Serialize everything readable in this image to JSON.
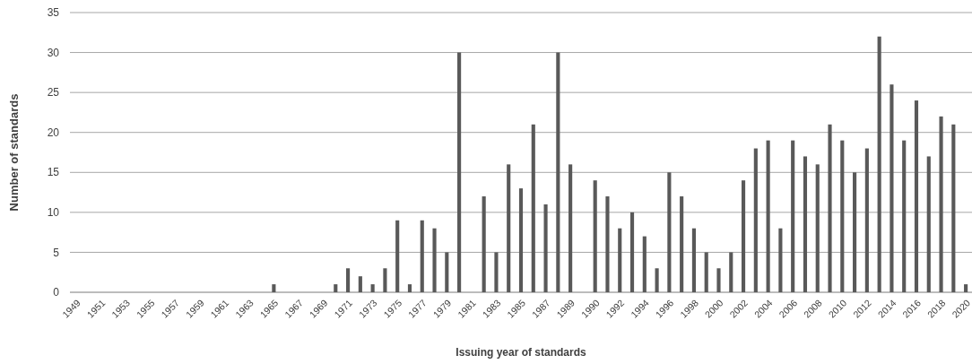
{
  "chart_data": {
    "type": "bar",
    "xlabel": "Issuing year of standards",
    "ylabel": "Number of standards",
    "categories": [
      "1949",
      null,
      "1951",
      null,
      "1953",
      null,
      "1955",
      null,
      "1957",
      null,
      "1959",
      null,
      "1961",
      null,
      "1963",
      null,
      "1965",
      null,
      "1967",
      null,
      "1969",
      null,
      "1971",
      null,
      "1973",
      null,
      "1975",
      null,
      "1977",
      null,
      "1979",
      null,
      "1981",
      null,
      "1983",
      null,
      "1985",
      null,
      "1987",
      null,
      "1989",
      null,
      "1990",
      null,
      "1992",
      null,
      "1994",
      null,
      "1996",
      null,
      "1998",
      null,
      "2000",
      null,
      "2002",
      null,
      "2004",
      null,
      "2006",
      null,
      "2008",
      null,
      "2010",
      null,
      "2012",
      null,
      "2014",
      null,
      "2016",
      null,
      "2018",
      null,
      "2020"
    ],
    "values": [
      0,
      0,
      0,
      0,
      0,
      0,
      0,
      0,
      0,
      0,
      0,
      0,
      0,
      0,
      0,
      0,
      1,
      0,
      0,
      0,
      0,
      1,
      3,
      2,
      1,
      3,
      9,
      1,
      9,
      8,
      5,
      30,
      0,
      12,
      5,
      16,
      13,
      21,
      11,
      30,
      16,
      0,
      14,
      12,
      8,
      10,
      7,
      3,
      15,
      12,
      8,
      5,
      3,
      5,
      14,
      18,
      19,
      8,
      19,
      17,
      16,
      21,
      19,
      15,
      18,
      32,
      26,
      19,
      24,
      17,
      22,
      21,
      1
    ],
    "color": "#595959",
    "ylim": [
      0,
      35
    ],
    "yticks": [
      0,
      5,
      10,
      15,
      20,
      25,
      30,
      35
    ],
    "grid": "y"
  }
}
